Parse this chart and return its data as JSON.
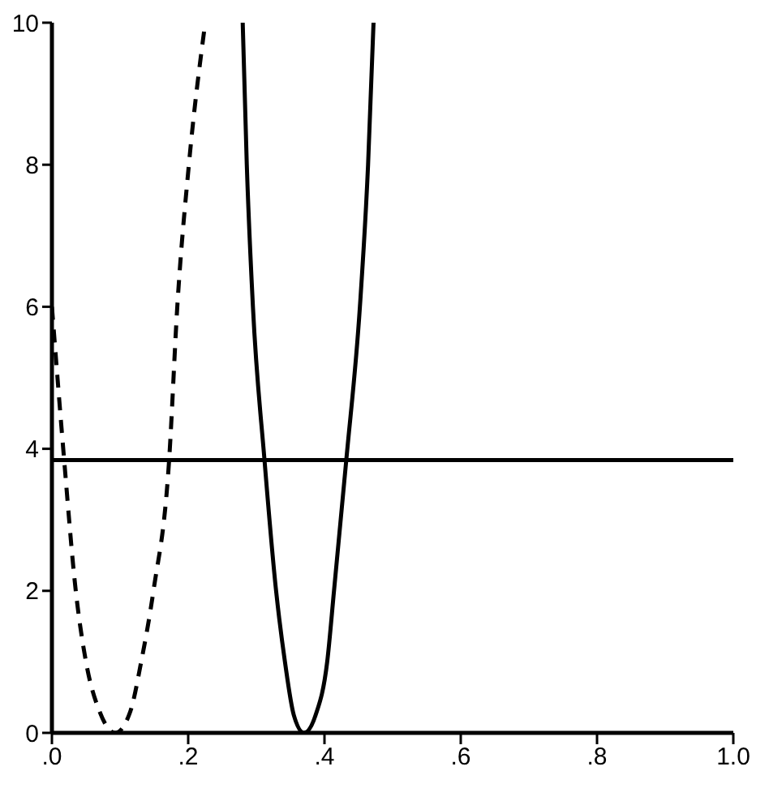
{
  "chart_data": {
    "type": "line",
    "xlim": [
      0,
      1
    ],
    "ylim": [
      0,
      10
    ],
    "xticks": [
      {
        "value": 0,
        "label": ".0"
      },
      {
        "value": 0.2,
        "label": ".2"
      },
      {
        "value": 0.4,
        "label": ".4"
      },
      {
        "value": 0.6,
        "label": ".6"
      },
      {
        "value": 0.8,
        "label": ".8"
      },
      {
        "value": 1,
        "label": "1.0"
      }
    ],
    "yticks": [
      0,
      2,
      4,
      6,
      8,
      10
    ],
    "series": [
      {
        "color": "#000000",
        "line_style": "dashed",
        "x": [
          0.0,
          0.018,
          0.035,
          0.05,
          0.07,
          0.093,
          0.115,
          0.131,
          0.149,
          0.172,
          0.184,
          0.201,
          0.225
        ],
        "values": [
          6,
          3.84,
          2,
          1,
          0.3,
          0,
          0.3,
          1,
          2,
          3.84,
          6,
          8,
          10
        ]
      },
      {
        "color": "#000000",
        "line_style": "solid",
        "x": [
          0.28,
          0.286,
          0.295,
          0.312,
          0.329,
          0.342,
          0.355,
          0.37,
          0.387,
          0.404,
          0.414,
          0.432,
          0.452,
          0.464,
          0.472
        ],
        "values": [
          10,
          8,
          6,
          3.84,
          2,
          1,
          0.25,
          0,
          0.25,
          1,
          2,
          3.84,
          6,
          8,
          10
        ]
      }
    ],
    "ref_lines": [
      {
        "axis": "y",
        "value": 3.84,
        "color": "#000000",
        "line_style": "solid"
      }
    ]
  }
}
